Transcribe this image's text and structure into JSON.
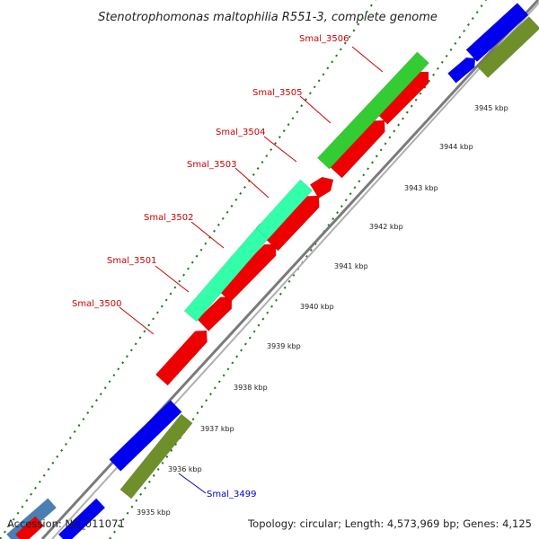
{
  "title": "Stenotrophomonas maltophilia R551-3, complete genome",
  "footer": {
    "accession": "Accession: NC_011071",
    "summary": "Topology: circular; Length: 4,573,969 bp; Genes: 4,125"
  },
  "colors": {
    "backbone": "#8a8a8a",
    "tick": "#1f7a1f",
    "label_red": "#cc0000",
    "label_blue": "#0000cc",
    "forward_orf": "#0000ee",
    "forward_cds": "#6f8f2a",
    "reverse_orf": "#ee0000",
    "reverse_cds_a": "#33cc33",
    "reverse_cds_b": "#33ffaa"
  },
  "kbp_ticks": [
    {
      "label": "3935 kbp"
    },
    {
      "label": "3936 kbp"
    },
    {
      "label": "3937 kbp"
    },
    {
      "label": "3938 kbp"
    },
    {
      "label": "3939 kbp"
    },
    {
      "label": "3940 kbp"
    },
    {
      "label": "3941 kbp"
    },
    {
      "label": "3942 kbp"
    },
    {
      "label": "3943 kbp"
    },
    {
      "label": "3944 kbp"
    },
    {
      "label": "3945 kbp"
    }
  ],
  "gene_labels": [
    {
      "name": "Smal_3506",
      "color": "red"
    },
    {
      "name": "Smal_3505",
      "color": "red"
    },
    {
      "name": "Smal_3504",
      "color": "red"
    },
    {
      "name": "Smal_3503",
      "color": "red"
    },
    {
      "name": "Smal_3502",
      "color": "red"
    },
    {
      "name": "Smal_3501",
      "color": "red"
    },
    {
      "name": "Smal_3500",
      "color": "red"
    },
    {
      "name": "Smal_3499",
      "color": "blue"
    }
  ]
}
